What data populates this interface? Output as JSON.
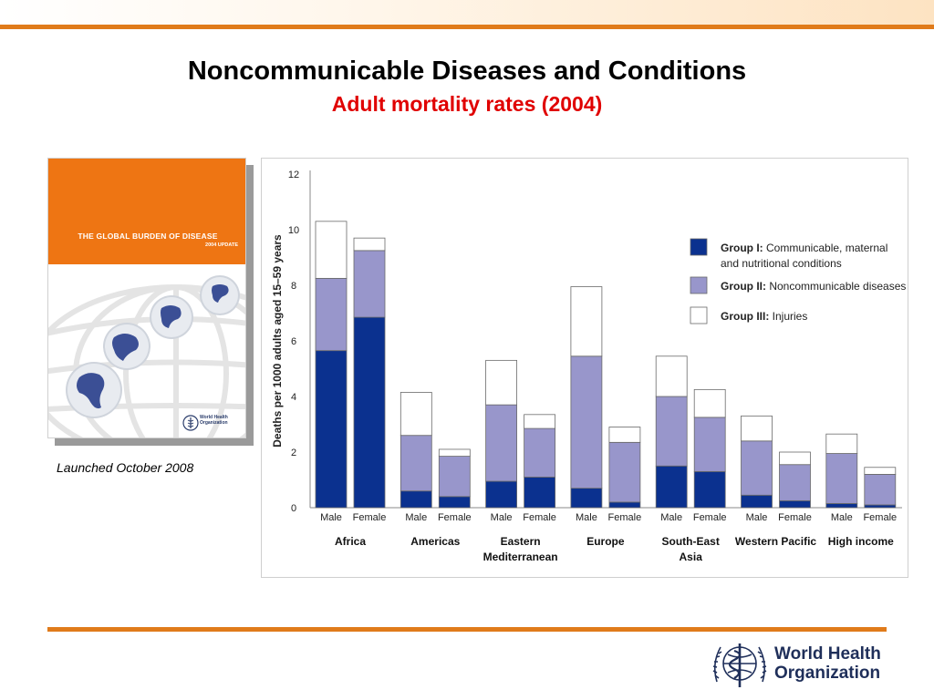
{
  "slide": {
    "title": "Noncommunicable Diseases and Conditions",
    "subtitle": "Adult mortality rates (2004)",
    "caption": "Launched  October 2008"
  },
  "cover": {
    "title": "THE GLOBAL BURDEN OF DISEASE",
    "subtitle": "2004 UPDATE",
    "logo_line1": "World Health",
    "logo_line2": "Organization",
    "top_color": "#ee7513"
  },
  "footer": {
    "org_line1": "World Health",
    "org_line2": "Organization"
  },
  "chart_data": {
    "type": "bar",
    "stacked": true,
    "ylabel": "Deaths per 1000 adults aged 15–59 years",
    "ylim": [
      0,
      12
    ],
    "yticks": [
      0,
      2,
      4,
      6,
      8,
      10,
      12
    ],
    "grid": false,
    "legend_position": "right",
    "groups": [
      {
        "name": "Africa",
        "lines": [
          "Africa"
        ]
      },
      {
        "name": "Americas",
        "lines": [
          "Americas"
        ]
      },
      {
        "name": "Eastern Mediterranean",
        "lines": [
          "Eastern",
          "Mediterranean"
        ]
      },
      {
        "name": "Europe",
        "lines": [
          "Europe"
        ]
      },
      {
        "name": "South-East Asia",
        "lines": [
          "South-East",
          "Asia"
        ]
      },
      {
        "name": "Western Pacific",
        "lines": [
          "Western Pacific"
        ]
      },
      {
        "name": "High income",
        "lines": [
          "High income"
        ]
      }
    ],
    "sexes": [
      "Male",
      "Female"
    ],
    "series": [
      {
        "name": "Group I",
        "legend_bold": "Group I:",
        "legend_rest": [
          "Communicable, maternal",
          "and nutritional conditions"
        ],
        "color": "#0b318f",
        "values": [
          [
            5.65,
            6.85
          ],
          [
            0.6,
            0.4
          ],
          [
            0.95,
            1.1
          ],
          [
            0.7,
            0.2
          ],
          [
            1.5,
            1.3
          ],
          [
            0.45,
            0.25
          ],
          [
            0.15,
            0.1
          ]
        ]
      },
      {
        "name": "Group II",
        "legend_bold": "Group II:",
        "legend_rest": [
          "Noncommunicable diseases"
        ],
        "color": "#9896cb",
        "values": [
          [
            2.6,
            2.4
          ],
          [
            2.0,
            1.45
          ],
          [
            2.75,
            1.75
          ],
          [
            4.75,
            2.15
          ],
          [
            2.5,
            1.95
          ],
          [
            1.95,
            1.3
          ],
          [
            1.8,
            1.1
          ]
        ]
      },
      {
        "name": "Group III",
        "legend_bold": "Group III:",
        "legend_rest": [
          "Injuries"
        ],
        "color": "#ffffff",
        "values": [
          [
            2.05,
            0.45
          ],
          [
            1.55,
            0.25
          ],
          [
            1.6,
            0.5
          ],
          [
            2.5,
            0.55
          ],
          [
            1.45,
            1.0
          ],
          [
            0.9,
            0.45
          ],
          [
            0.7,
            0.25
          ]
        ]
      }
    ]
  }
}
